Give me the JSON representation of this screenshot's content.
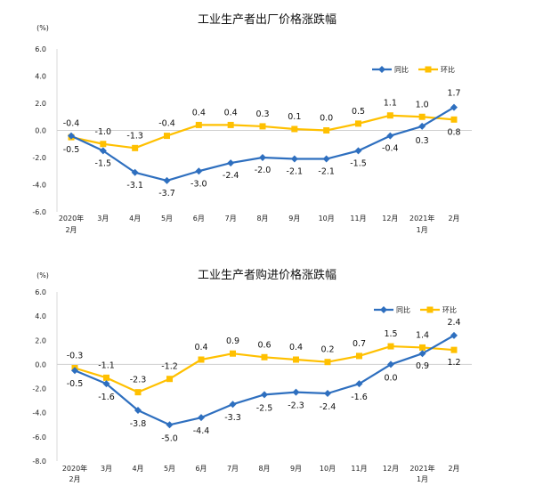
{
  "chart_data": [
    {
      "type": "line",
      "title": "工业生产者出厂价格涨跌幅",
      "unit": "(%)",
      "ylim": [
        -6.0,
        6.0
      ],
      "yticks": [
        "6.0",
        "4.0",
        "2.0",
        "0.0",
        "-2.0",
        "-4.0",
        "-6.0"
      ],
      "categories": [
        {
          "line1": "2020年",
          "line2": "2月"
        },
        {
          "line1": "3月",
          "line2": ""
        },
        {
          "line1": "4月",
          "line2": ""
        },
        {
          "line1": "5月",
          "line2": ""
        },
        {
          "line1": "6月",
          "line2": ""
        },
        {
          "line1": "7月",
          "line2": ""
        },
        {
          "line1": "8月",
          "line2": ""
        },
        {
          "line1": "9月",
          "line2": ""
        },
        {
          "line1": "10月",
          "line2": ""
        },
        {
          "line1": "11月",
          "line2": ""
        },
        {
          "line1": "12月",
          "line2": ""
        },
        {
          "line1": "2021年",
          "line2": "1月"
        },
        {
          "line1": "2月",
          "line2": ""
        }
      ],
      "series": [
        {
          "name": "同比",
          "color": "#2E6FBF",
          "marker": "diamond",
          "values": [
            -0.4,
            -1.5,
            -3.1,
            -3.7,
            -3.0,
            -2.4,
            -2.0,
            -2.1,
            -2.1,
            -1.5,
            -0.4,
            0.3,
            1.7
          ],
          "labels": [
            "-0.4",
            "-1.5",
            "-3.1",
            "-3.7",
            "-3.0",
            "-2.4",
            "-2.0",
            "-2.1",
            "-2.1",
            "-1.5",
            "-0.4",
            "0.3",
            "1.7"
          ]
        },
        {
          "name": "环比",
          "color": "#FFC000",
          "marker": "square",
          "values": [
            -0.5,
            -1.0,
            -1.3,
            -0.4,
            0.4,
            0.4,
            0.3,
            0.1,
            0.0,
            0.5,
            1.1,
            1.0,
            0.8
          ],
          "labels": [
            "-0.5",
            "-1.0",
            "-1.3",
            "-0.4",
            "0.4",
            "0.4",
            "0.3",
            "0.1",
            "0.0",
            "0.5",
            "1.1",
            "1.0",
            "0.8"
          ]
        }
      ],
      "legend_position": "top-right",
      "grid": false
    },
    {
      "type": "line",
      "title": "工业生产者购进价格涨跌幅",
      "unit": "(%)",
      "ylim": [
        -8.0,
        6.0
      ],
      "yticks": [
        "6.0",
        "4.0",
        "2.0",
        "0.0",
        "-2.0",
        "-4.0",
        "-6.0",
        "-8.0"
      ],
      "categories": [
        {
          "line1": "2020年",
          "line2": "2月"
        },
        {
          "line1": "3月",
          "line2": ""
        },
        {
          "line1": "4月",
          "line2": ""
        },
        {
          "line1": "5月",
          "line2": ""
        },
        {
          "line1": "6月",
          "line2": ""
        },
        {
          "line1": "7月",
          "line2": ""
        },
        {
          "line1": "8月",
          "line2": ""
        },
        {
          "line1": "9月",
          "line2": ""
        },
        {
          "line1": "10月",
          "line2": ""
        },
        {
          "line1": "11月",
          "line2": ""
        },
        {
          "line1": "12月",
          "line2": ""
        },
        {
          "line1": "2021年",
          "line2": "1月"
        },
        {
          "line1": "2月",
          "line2": ""
        }
      ],
      "series": [
        {
          "name": "同比",
          "color": "#2E6FBF",
          "marker": "diamond",
          "values": [
            -0.5,
            -1.6,
            -3.8,
            -5.0,
            -4.4,
            -3.3,
            -2.5,
            -2.3,
            -2.4,
            -1.6,
            0.0,
            0.9,
            2.4
          ],
          "labels": [
            "-0.5",
            "-1.6",
            "-3.8",
            "-5.0",
            "-4.4",
            "-3.3",
            "-2.5",
            "-2.3",
            "-2.4",
            "-1.6",
            "0.0",
            "0.9",
            "2.4"
          ]
        },
        {
          "name": "环比",
          "color": "#FFC000",
          "marker": "square",
          "values": [
            -0.3,
            -1.1,
            -2.3,
            -1.2,
            0.4,
            0.9,
            0.6,
            0.4,
            0.2,
            0.7,
            1.5,
            1.4,
            1.2
          ],
          "labels": [
            "-0.3",
            "-1.1",
            "-2.3",
            "-1.2",
            "0.4",
            "0.9",
            "0.6",
            "0.4",
            "0.2",
            "0.7",
            "1.5",
            "1.4",
            "1.2"
          ]
        }
      ],
      "legend_position": "top-right",
      "grid": false
    }
  ]
}
